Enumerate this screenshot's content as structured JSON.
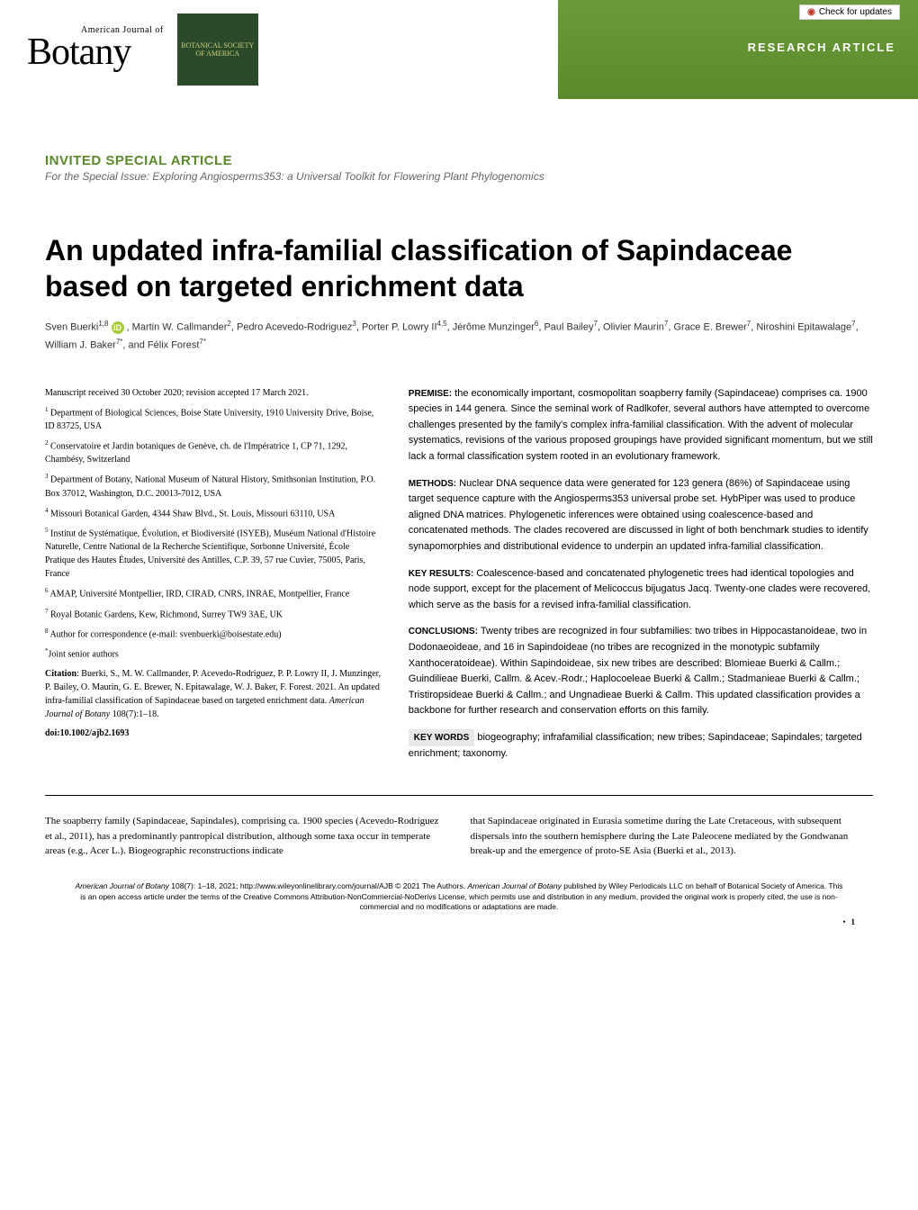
{
  "header": {
    "journal_small": "American Journal of",
    "journal_big": "Botany",
    "society_badge": "BOTANICAL SOCIETY OF AMERICA",
    "research_label": "RESEARCH ARTICLE",
    "check_updates": "Check for updates"
  },
  "article": {
    "special_heading": "INVITED SPECIAL ARTICLE",
    "special_issue": "For the Special Issue: Exploring Angiosperms353: a Universal Toolkit for Flowering Plant Phylogenomics",
    "title": "An updated infra-familial classification of Sapindaceae based on targeted enrichment data",
    "authors_html": "Sven Buerki<sup>1,8</sup> <span class='orcid'>iD</span> , Martin W. Callmander<sup>2</sup>, Pedro Acevedo-Rodriguez<sup>3</sup>, Porter P. Lowry II<sup>4,5</sup>, Jérôme Munzinger<sup>6</sup>, Paul Bailey<sup>7</sup>, Olivier Maurin<sup>7</sup>, Grace E. Brewer<sup>7</sup>, Niroshini Epitawalage<sup>7</sup>, William J. Baker<sup>7*</sup>, and Félix Forest<sup>7*</sup>"
  },
  "left": {
    "manuscript_info": "Manuscript received 30 October 2020; revision accepted 17 March 2021.",
    "affiliations": [
      "<sup>1</sup> Department of Biological Sciences, Boise State University, 1910 University Drive, Boise, ID 83725, USA",
      "<sup>2</sup> Conservatoire et Jardin botaniques de Genève, ch. de l'Impératrice 1, CP 71, 1292, Chambésy, Switzerland",
      "<sup>3</sup> Department of Botany, National Museum of Natural History, Smithsonian Institution, P.O. Box 37012, Washington, D.C. 20013-7012, USA",
      "<sup>4</sup> Missouri Botanical Garden, 4344 Shaw Blvd., St. Louis, Missouri 63110, USA",
      "<sup>5</sup> Institut de Systématique, Évolution, et Biodiversité (ISYEB), Muséum National d'Histoire Naturelle, Centre National de la Recherche Scientifique, Sorbonne Université, École Pratique des Hautes Études, Université des Antilles, C.P. 39, 57 rue Cuvier, 75005, Paris, France",
      "<sup>6</sup> AMAP, Université Montpellier, IRD, CIRAD, CNRS, INRAE, Montpellier, France",
      "<sup>7</sup> Royal Botanic Gardens, Kew, Richmond, Surrey TW9 3AE, UK",
      "<sup>8</sup> Author for correspondence (e-mail: svenbuerki@boisestate.edu)",
      "<sup>*</sup>Joint senior authors"
    ],
    "citation_label": "Citation",
    "citation_text": ": Buerki, S., M. W. Callmander, P. Acevedo-Rodriguez, P. P. Lowry II, J. Munzinger, P. Bailey, O. Maurin, G. E. Brewer, N. Epitawalage, W. J. Baker, F. Forest. 2021. An updated infra-familial classification of Sapindaceae based on targeted enrichment data. ",
    "citation_journal": "American Journal of Botany",
    "citation_vol": " 108(7):1–18.",
    "doi_label": "doi:10.1002/ajb2.1693"
  },
  "abstract": {
    "premise_label": "PREMISE:",
    "premise_text": " the economically important, cosmopolitan soapberry family (Sapindaceae) comprises ca. 1900 species in 144 genera. Since the seminal work of Radlkofer, several authors have attempted to overcome challenges presented by the family's complex infra-familial classification. With the advent of molecular systematics, revisions of the various proposed groupings have provided significant momentum, but we still lack a formal classification system rooted in an evolutionary framework.",
    "methods_label": "METHODS:",
    "methods_text": " Nuclear DNA sequence data were generated for 123 genera (86%) of Sapindaceae using target sequence capture with the Angiosperms353 universal probe set. HybPiper was used to produce aligned DNA matrices. Phylogenetic inferences were obtained using coalescence-based and concatenated methods. The clades recovered are discussed in light of both benchmark studies to identify synapomorphies and distributional evidence to underpin an updated infra-familial classification.",
    "results_label": "KEY RESULTS:",
    "results_text": " Coalescence-based and concatenated phylogenetic trees had identical topologies and node support, except for the placement of Melicoccus bijugatus Jacq. Twenty-one clades were recovered, which serve as the basis for a revised infra-familial classification.",
    "conclusions_label": "CONCLUSIONS:",
    "conclusions_text": " Twenty tribes are recognized in four subfamilies: two tribes in Hippocastanoideae, two in Dodonaeoideae, and 16 in Sapindoideae (no tribes are recognized in the monotypic subfamily Xanthoceratoideae). Within Sapindoideae, six new tribes are described: Blomieae Buerki & Callm.; Guindilieae Buerki, Callm. & Acev.-Rodr.; Haplocoeleae Buerki & Callm.; Stadmanieae Buerki & Callm.; Tristiropsideae Buerki & Callm.; and Ungnadieae Buerki & Callm. This updated classification provides a backbone for further research and conservation efforts on this family.",
    "keywords_label": "KEY WORDS",
    "keywords_text": "   biogeography; infrafamilial classification; new tribes; Sapindaceae; Sapindales; targeted enrichment; taxonomy."
  },
  "intro": {
    "left_para": "The soapberry family (Sapindaceae, Sapindales), comprising ca. 1900 species (Acevedo-Rodríguez et al., 2011), has a predominantly pantropical distribution, although some taxa occur in temperate areas (e.g., Acer L.). Biogeographic reconstructions indicate",
    "right_para": "that Sapindaceae originated in Eurasia sometime during the Late Cretaceous, with subsequent dispersals into the southern hemisphere during the Late Paleocene mediated by the Gondwanan break-up and the emergence of proto-SE Asia (Buerki et al., 2013)."
  },
  "footer": {
    "text_1": "American Journal of Botany",
    "text_2": " 108(7): 1–18, 2021; http://www.wileyonlinelibrary.com/journal/AJB © 2021 The Authors. ",
    "text_3": "American Journal of Botany",
    "text_4": " published by Wiley Periodicals LLC on behalf of Botanical Society of America. This is an open access article under the terms of the Creative Commons Attribution-NonCommercial-NoDerivs License, which permits use and distribution in any medium, provided the original work is properly cited, the use is non-commercial and no modifications or adaptations are made.",
    "page": "1"
  }
}
